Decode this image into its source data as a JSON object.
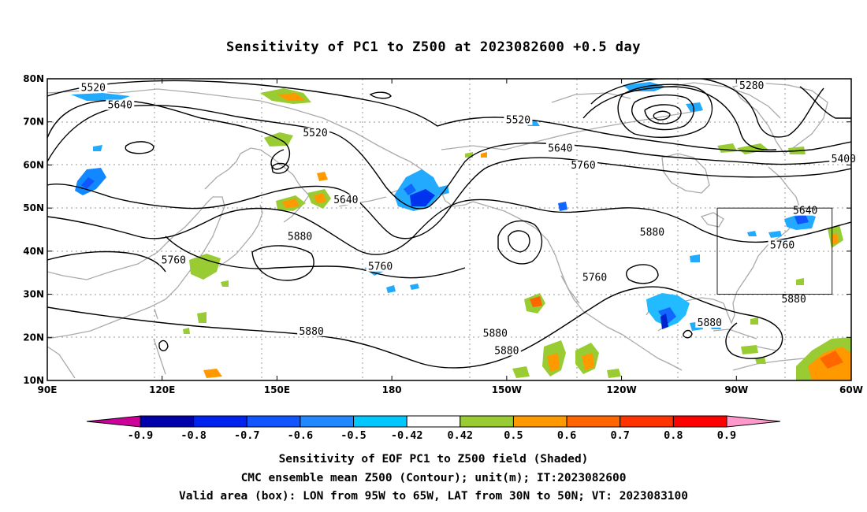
{
  "title": "Sensitivity of PC1 to Z500 at 2023082600 +0.5 day",
  "axes": {
    "lat_ticks": [
      "80N",
      "70N",
      "60N",
      "50N",
      "40N",
      "30N",
      "20N",
      "10N"
    ],
    "lon_ticks": [
      "90E",
      "120E",
      "150E",
      "180",
      "150W",
      "120W",
      "90W",
      "60W"
    ]
  },
  "contour_labels": [
    {
      "text": "5520",
      "lon": 102,
      "lat": 77.5
    },
    {
      "text": "5640",
      "lon": 109,
      "lat": 73.5
    },
    {
      "text": "5520",
      "lon": 160,
      "lat": 67
    },
    {
      "text": "5640",
      "lon": 168,
      "lat": 51.5
    },
    {
      "text": "5880",
      "lon": 156,
      "lat": 43
    },
    {
      "text": "5760",
      "lon": 123,
      "lat": 37.5
    },
    {
      "text": "5760",
      "lon": 177,
      "lat": 36
    },
    {
      "text": "5880",
      "lon": 159,
      "lat": 21
    },
    {
      "text": "5520",
      "lon": -147,
      "lat": 70
    },
    {
      "text": "5640",
      "lon": -136,
      "lat": 63.5
    },
    {
      "text": "5760",
      "lon": -130,
      "lat": 59.5
    },
    {
      "text": "5760",
      "lon": -127,
      "lat": 33.5
    },
    {
      "text": "5880",
      "lon": -112,
      "lat": 44
    },
    {
      "text": "5880",
      "lon": -153,
      "lat": 20.5
    },
    {
      "text": "5880",
      "lon": -150,
      "lat": 16.5
    },
    {
      "text": "5880",
      "lon": -97,
      "lat": 23
    },
    {
      "text": "5880",
      "lon": -75,
      "lat": 28.5
    },
    {
      "text": "5760",
      "lon": -78,
      "lat": 41
    },
    {
      "text": "5640",
      "lon": -72,
      "lat": 49
    },
    {
      "text": "5280",
      "lon": -86,
      "lat": 78
    },
    {
      "text": "5400",
      "lon": -62,
      "lat": 61
    }
  ],
  "valid_box": {
    "lon_min": -95,
    "lon_max": -65,
    "lat_min": 30,
    "lat_max": 50
  },
  "colorbar": {
    "labels": [
      "-0.9",
      "-0.8",
      "-0.7",
      "-0.6",
      "-0.5",
      "-0.42",
      "0.42",
      "0.5",
      "0.6",
      "0.7",
      "0.8",
      "0.9"
    ],
    "colors": [
      "#cc0099",
      "#0000aa",
      "#0022ee",
      "#1155ff",
      "#2288ff",
      "#00c8ff",
      "#ffffff",
      "#99cc33",
      "#ff9900",
      "#ff6600",
      "#ff3300",
      "#ff0000",
      "#ff99cc"
    ]
  },
  "captions": [
    "Sensitivity of EOF PC1 to Z500 field (Shaded)",
    "CMC ensemble mean Z500 (Contour); unit(m); IT:2023082600",
    "Valid area (box): LON from 95W to 65W, LAT from 30N to 50N; VT: 2023083100"
  ]
}
